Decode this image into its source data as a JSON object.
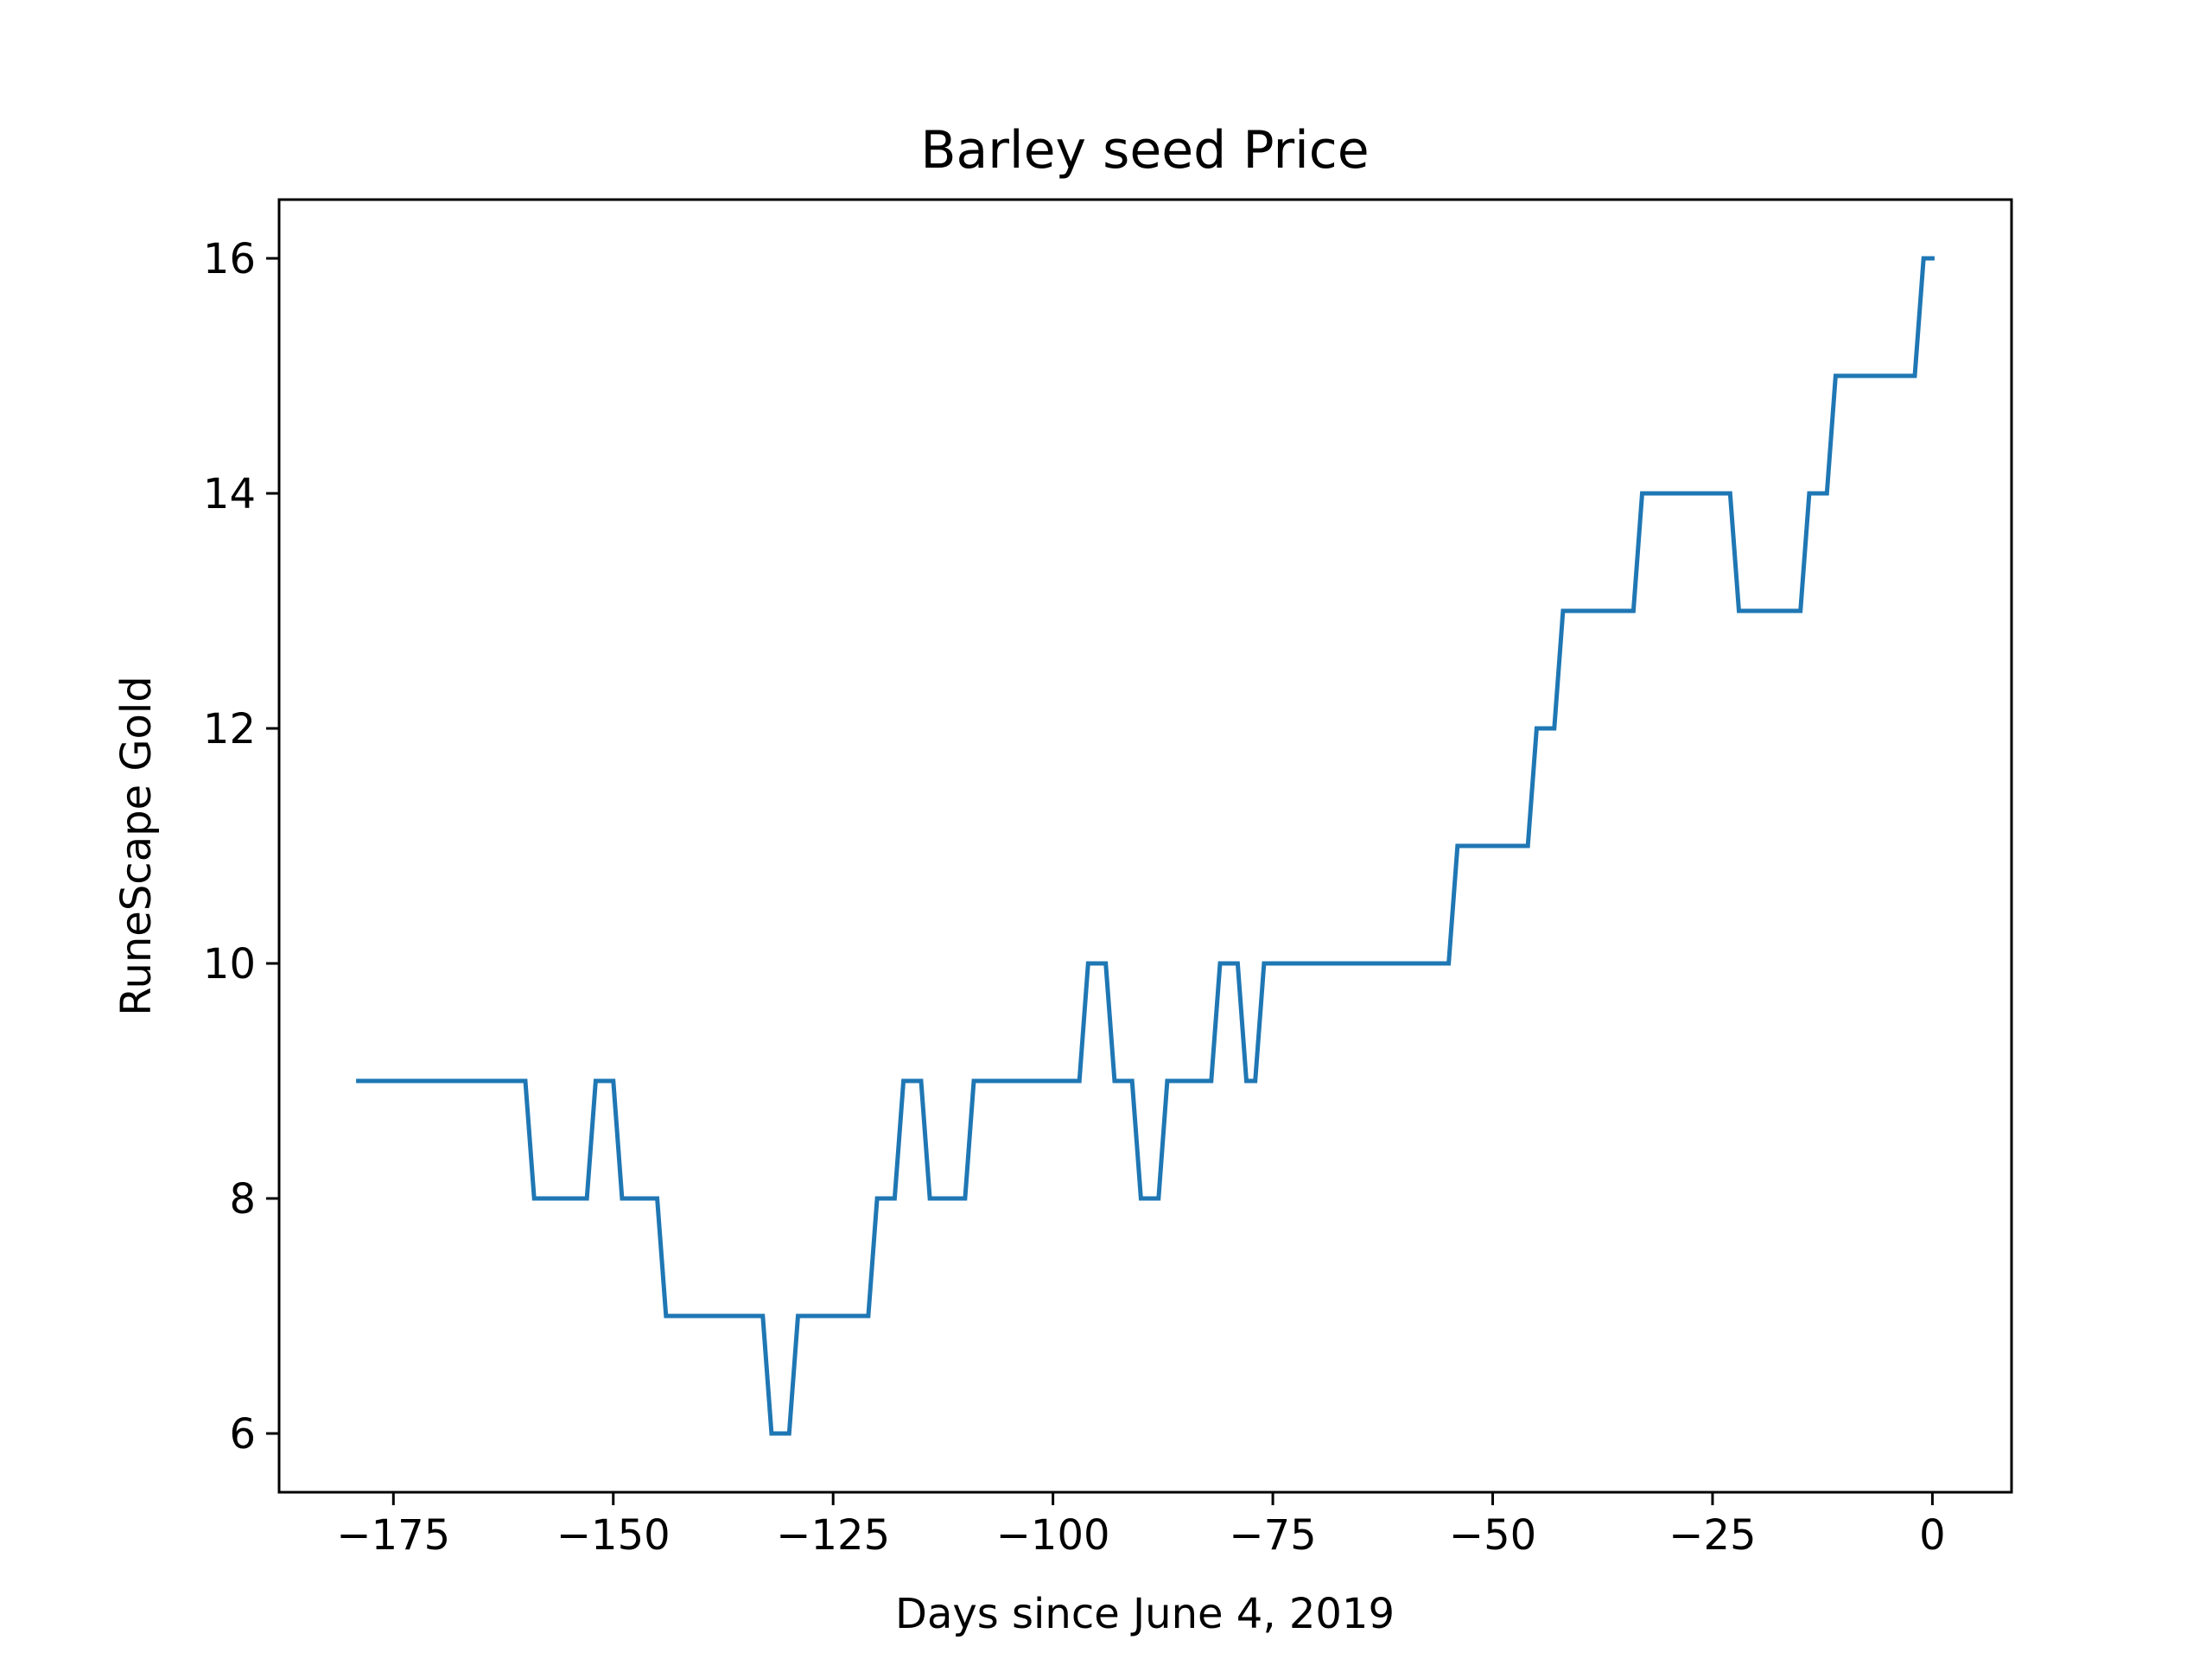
{
  "chart_data": {
    "type": "line",
    "title": "Barley seed Price",
    "xlabel": "Days since June 4, 2019",
    "ylabel": "RuneScape Gold",
    "xlim": [
      -188,
      9
    ],
    "ylim": [
      5.5,
      16.5
    ],
    "xticks": [
      -175,
      -150,
      -125,
      -100,
      -75,
      -50,
      -25,
      0
    ],
    "xtick_labels": [
      "−175",
      "−150",
      "−125",
      "−100",
      "−75",
      "−50",
      "−25",
      "0"
    ],
    "yticks": [
      6,
      8,
      10,
      12,
      14,
      16
    ],
    "ytick_labels": [
      "6",
      "8",
      "10",
      "12",
      "14",
      "16"
    ],
    "grid": false,
    "legend": "none",
    "series": [
      {
        "color": "#1f77b4",
        "x": [
          -179,
          -160,
          -159,
          -153,
          -152,
          -150,
          -149,
          -145,
          -144,
          -133,
          -132,
          -130,
          -129,
          -121,
          -120,
          -118,
          -117,
          -115,
          -114,
          -110,
          -109,
          -97,
          -96,
          -94,
          -93,
          -91,
          -90,
          -88,
          -87,
          -82,
          -81,
          -79,
          -78,
          -77,
          -76,
          -55,
          -54,
          -46,
          -45,
          -43,
          -42,
          -34,
          -33,
          -23,
          -22,
          -15,
          -14,
          -12,
          -11,
          -2,
          -1,
          0
        ],
        "y": [
          9,
          9,
          8,
          8,
          9,
          9,
          8,
          8,
          7,
          7,
          6,
          6,
          7,
          7,
          8,
          8,
          9,
          9,
          8,
          8,
          9,
          9,
          10,
          10,
          9,
          9,
          8,
          8,
          9,
          9,
          10,
          10,
          9,
          9,
          10,
          10,
          11,
          11,
          12,
          12,
          13,
          13,
          14,
          14,
          13,
          13,
          14,
          14,
          15,
          15,
          16,
          16
        ]
      }
    ]
  }
}
